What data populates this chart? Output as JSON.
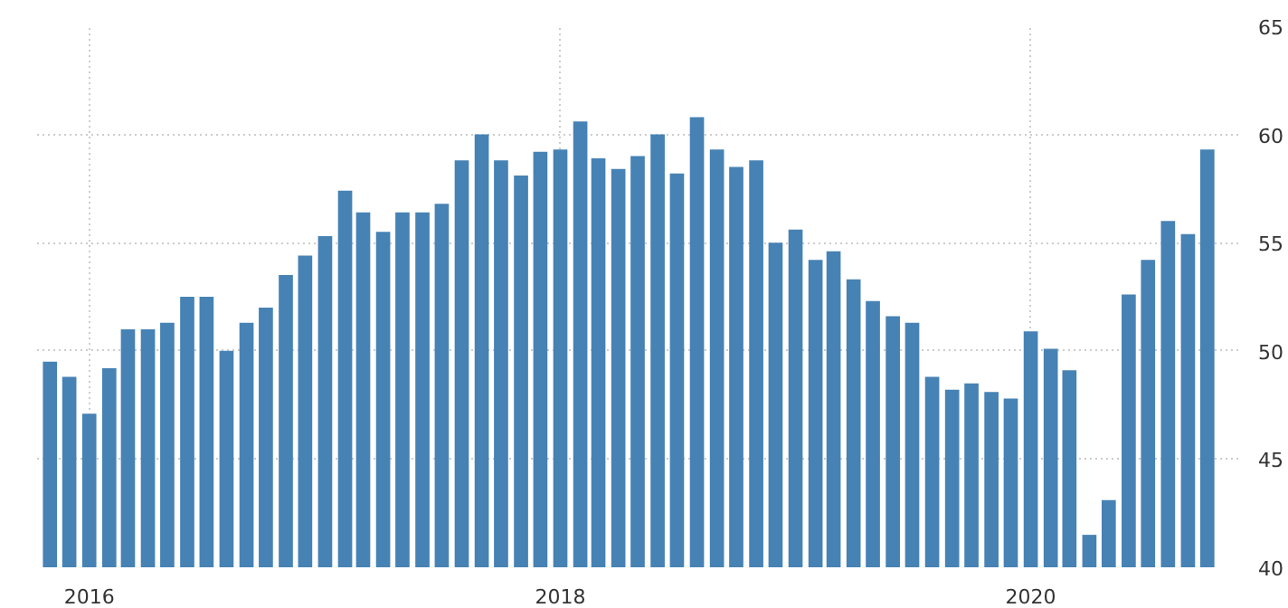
{
  "chart_data": {
    "type": "bar",
    "x": [
      "2015-11",
      "2015-12",
      "2016-01",
      "2016-02",
      "2016-03",
      "2016-04",
      "2016-05",
      "2016-06",
      "2016-07",
      "2016-08",
      "2016-09",
      "2016-10",
      "2016-11",
      "2016-12",
      "2017-01",
      "2017-02",
      "2017-03",
      "2017-04",
      "2017-05",
      "2017-06",
      "2017-07",
      "2017-08",
      "2017-09",
      "2017-10",
      "2017-11",
      "2017-12",
      "2018-01",
      "2018-02",
      "2018-03",
      "2018-04",
      "2018-05",
      "2018-06",
      "2018-07",
      "2018-08",
      "2018-09",
      "2018-10",
      "2018-11",
      "2018-12",
      "2019-01",
      "2019-02",
      "2019-03",
      "2019-04",
      "2019-05",
      "2019-06",
      "2019-07",
      "2019-08",
      "2019-09",
      "2019-10",
      "2019-11",
      "2019-12",
      "2020-01",
      "2020-02",
      "2020-03",
      "2020-04",
      "2020-05",
      "2020-06",
      "2020-07",
      "2020-08",
      "2020-09",
      "2020-10"
    ],
    "values": [
      49.5,
      48.8,
      47.1,
      49.2,
      51.0,
      51.0,
      51.3,
      52.5,
      52.5,
      50.0,
      51.3,
      52.0,
      53.5,
      54.4,
      55.3,
      57.4,
      56.4,
      55.5,
      56.4,
      56.4,
      56.8,
      58.8,
      60.0,
      58.8,
      58.1,
      59.2,
      59.3,
      60.6,
      58.9,
      58.4,
      59.0,
      60.0,
      58.2,
      60.8,
      59.3,
      58.5,
      58.8,
      55.0,
      55.6,
      54.2,
      54.6,
      53.3,
      52.3,
      51.6,
      51.3,
      48.8,
      48.2,
      48.5,
      48.1,
      47.8,
      50.9,
      50.1,
      49.1,
      41.5,
      43.1,
      52.6,
      54.2,
      56.0,
      55.4,
      59.3
    ],
    "color": "#4682b4",
    "xlim": [
      "2015-10-12",
      "2020-11-18"
    ],
    "xticks": [
      {
        "value": "2016-01",
        "label": "2016"
      },
      {
        "value": "2018-01",
        "label": "2018"
      },
      {
        "value": "2020-01",
        "label": "2020"
      }
    ],
    "ylim": [
      40,
      65
    ],
    "yticks": [
      40,
      45,
      50,
      55,
      60,
      65
    ],
    "grid": true
  }
}
